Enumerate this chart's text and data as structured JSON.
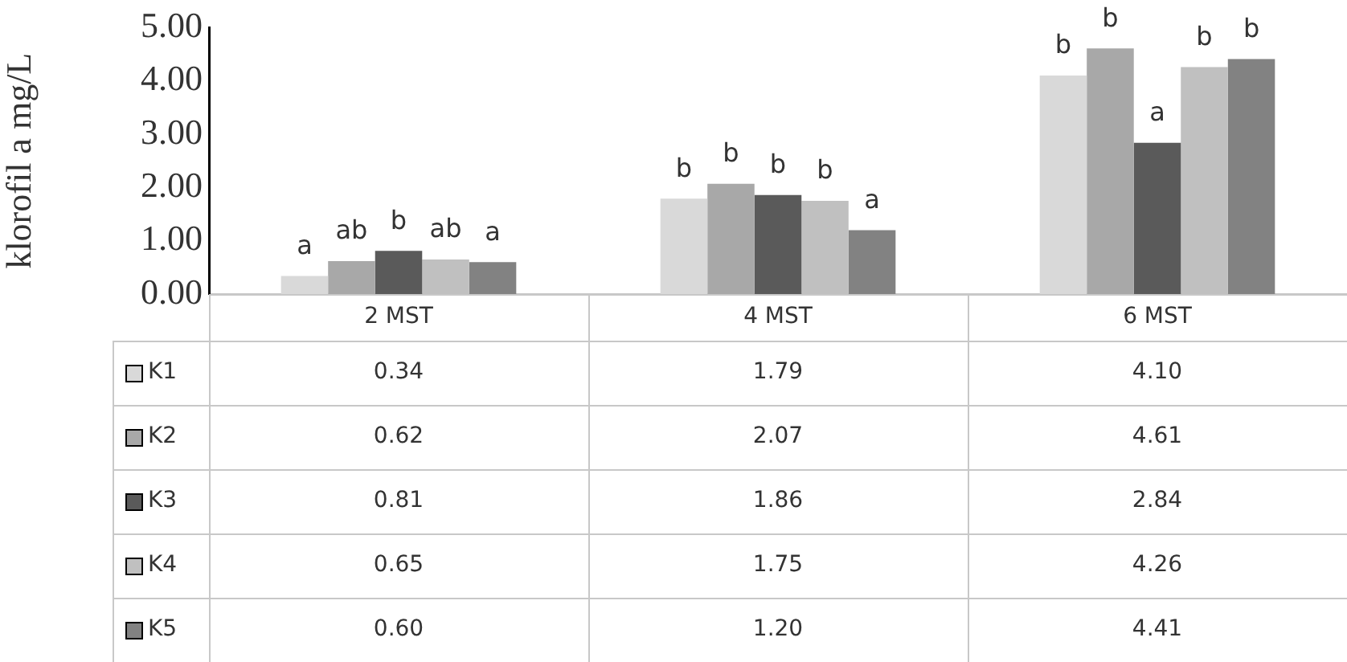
{
  "chart_data": {
    "type": "bar",
    "ylabel": "klorofil a mg/L",
    "categories": [
      "2 MST",
      "4 MST",
      "6 MST"
    ],
    "series": [
      {
        "name": "K1",
        "color": "#d9d9d9",
        "values": [
          0.34,
          1.79,
          4.1
        ],
        "value_labels": [
          "0.34",
          "1.79",
          "4.10"
        ]
      },
      {
        "name": "K2",
        "color": "#a8a8a8",
        "values": [
          0.62,
          2.07,
          4.61
        ],
        "value_labels": [
          "0.62",
          "2.07",
          "4.61"
        ]
      },
      {
        "name": "K3",
        "color": "#5a5a5a",
        "values": [
          0.81,
          1.86,
          2.84
        ],
        "value_labels": [
          "0.81",
          "1.86",
          "2.84"
        ]
      },
      {
        "name": "K4",
        "color": "#c0c0c0",
        "values": [
          0.65,
          1.75,
          4.26
        ],
        "value_labels": [
          "0.65",
          "1.75",
          "4.26"
        ]
      },
      {
        "name": "K5",
        "color": "#828282",
        "values": [
          0.6,
          1.2,
          4.41
        ],
        "value_labels": [
          "0.60",
          "1.20",
          "4.41"
        ]
      }
    ],
    "ylim": [
      0,
      5
    ],
    "yticks": [
      {
        "value": 0,
        "label": "0.00"
      },
      {
        "value": 1,
        "label": "1.00"
      },
      {
        "value": 2,
        "label": "2.00"
      },
      {
        "value": 3,
        "label": "3.00"
      },
      {
        "value": 4,
        "label": "4.00"
      },
      {
        "value": 5,
        "label": "5.00"
      }
    ],
    "grid": false,
    "legend": "bottom",
    "annotations": [
      "a",
      "ab",
      "b",
      "ab",
      "a",
      "b",
      "b",
      "b",
      "b",
      "a",
      "b",
      "b",
      "a",
      "b",
      "b"
    ]
  }
}
